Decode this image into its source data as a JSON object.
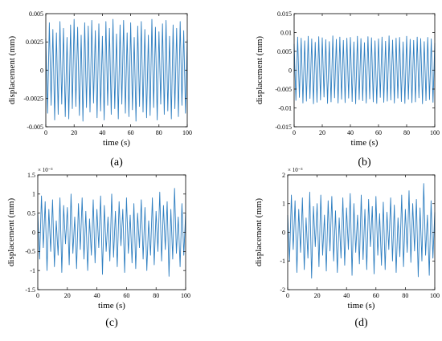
{
  "colors": {
    "line": "#2f7fc1",
    "axis": "#000000",
    "background": "#ffffff"
  },
  "chart_data": [
    {
      "type": "line",
      "panel_label": "(a)",
      "xlabel": "time (s)",
      "ylabel": "displacement (mm)",
      "exponent_label": "",
      "xlim": [
        0,
        100
      ],
      "ylim": [
        -0.005,
        0.005
      ],
      "xticks": [
        0,
        20,
        40,
        60,
        80,
        100
      ],
      "yticks": [
        -0.005,
        -0.0025,
        0,
        0.0025,
        0.005
      ],
      "ytick_labels": [
        "-0.005",
        "-0.0025",
        "0",
        "0.0025",
        "0.005"
      ],
      "series": [
        {
          "x": [
            0,
            1.25,
            2.5,
            3.75,
            5,
            6.25,
            7.5,
            8.75,
            10,
            11.25,
            12.5,
            13.75,
            15,
            16.25,
            17.5,
            18.75,
            20,
            21.25,
            22.5,
            23.75,
            25,
            26.25,
            27.5,
            28.75,
            30,
            31.25,
            32.5,
            33.75,
            35,
            36.25,
            37.5,
            38.75,
            40,
            41.25,
            42.5,
            43.75,
            45,
            46.25,
            47.5,
            48.75,
            50,
            51.25,
            52.5,
            53.75,
            55,
            56.25,
            57.5,
            58.75,
            60,
            61.25,
            62.5,
            63.75,
            65,
            66.25,
            67.5,
            68.75,
            70,
            71.25,
            72.5,
            73.75,
            75,
            76.25,
            77.5,
            78.75,
            80,
            81.25,
            82.5,
            83.75,
            85,
            86.25,
            87.5,
            88.75,
            90,
            91.25,
            92.5,
            93.75,
            95,
            96.25,
            97.5,
            98.75,
            100
          ],
          "y": [
            0.0028,
            -0.0038,
            0.0042,
            -0.0031,
            0.0036,
            -0.0044,
            0.0033,
            -0.0039,
            0.0043,
            -0.003,
            0.0037,
            -0.0041,
            0.0029,
            -0.0043,
            0.004,
            -0.0034,
            0.0045,
            -0.0032,
            0.0038,
            -0.004,
            0.0031,
            -0.0045,
            0.0042,
            -0.0033,
            0.0039,
            -0.0037,
            0.0044,
            -0.0029,
            0.0035,
            -0.0042,
            0.0041,
            -0.0036,
            0.003,
            -0.0044,
            0.0043,
            -0.0031,
            0.0037,
            -0.0039,
            0.0045,
            -0.0034,
            0.0032,
            -0.0043,
            0.004,
            -0.003,
            0.0044,
            -0.0038,
            0.0033,
            -0.0041,
            0.0042,
            -0.0035,
            0.0029,
            -0.0045,
            0.0039,
            -0.0032,
            0.0043,
            -0.0037,
            0.0036,
            -0.0042,
            0.0031,
            -0.004,
            0.0045,
            -0.0033,
            0.0038,
            -0.0044,
            0.0034,
            -0.003,
            0.0041,
            -0.0039,
            0.0044,
            -0.0036,
            0.003,
            -0.0043,
            0.004,
            -0.0034,
            0.0037,
            -0.0041,
            0.0043,
            -0.0031,
            0.0035,
            -0.0038,
            0.0027
          ]
        }
      ]
    },
    {
      "type": "line",
      "panel_label": "(b)",
      "xlabel": "time (s)",
      "ylabel": "displacement (mm)",
      "exponent_label": "",
      "xlim": [
        0,
        100
      ],
      "ylim": [
        -0.015,
        0.015
      ],
      "xticks": [
        0,
        20,
        40,
        60,
        80,
        100
      ],
      "yticks": [
        -0.015,
        -0.01,
        -0.005,
        0,
        0.005,
        0.01,
        0.015
      ],
      "ytick_labels": [
        "-0.015",
        "-0.01",
        "-0.005",
        "0",
        "0.005",
        "0.01",
        "0.015"
      ],
      "series": [
        {
          "x": [
            0,
            1.25,
            2.5,
            3.75,
            5,
            6.25,
            7.5,
            8.75,
            10,
            11.25,
            12.5,
            13.75,
            15,
            16.25,
            17.5,
            18.75,
            20,
            21.25,
            22.5,
            23.75,
            25,
            26.25,
            27.5,
            28.75,
            30,
            31.25,
            32.5,
            33.75,
            35,
            36.25,
            37.5,
            38.75,
            40,
            41.25,
            42.5,
            43.75,
            45,
            46.25,
            47.5,
            48.75,
            50,
            51.25,
            52.5,
            53.75,
            55,
            56.25,
            57.5,
            58.75,
            60,
            61.25,
            62.5,
            63.75,
            65,
            66.25,
            67.5,
            68.75,
            70,
            71.25,
            72.5,
            73.75,
            75,
            76.25,
            77.5,
            78.75,
            80,
            81.25,
            82.5,
            83.75,
            85,
            86.25,
            87.5,
            88.75,
            90,
            91.25,
            92.5,
            93.75,
            95,
            96.25,
            97.5,
            98.75,
            100
          ],
          "y": [
            0.007,
            -0.008,
            0.0088,
            -0.0072,
            0.0085,
            -0.0087,
            0.0078,
            -0.0082,
            0.009,
            -0.0075,
            0.0083,
            -0.0089,
            0.0074,
            -0.0085,
            0.0089,
            -0.0079,
            0.0086,
            -0.0071,
            0.0081,
            -0.0088,
            0.0076,
            -0.0084,
            0.0091,
            -0.0073,
            0.0082,
            -0.0087,
            0.0088,
            -0.0077,
            0.0079,
            -0.0086,
            0.0085,
            -0.0074,
            0.0087,
            -0.0083,
            0.0075,
            -0.0089,
            0.009,
            -0.0078,
            0.0084,
            -0.0081,
            0.0073,
            -0.0087,
            0.0089,
            -0.0076,
            0.0086,
            -0.0084,
            0.0078,
            -0.0088,
            0.0083,
            -0.0072,
            0.0088,
            -0.0085,
            0.0077,
            -0.0082,
            0.0091,
            -0.0079,
            0.008,
            -0.0087,
            0.0085,
            -0.0074,
            0.0087,
            -0.0083,
            0.0075,
            -0.0088,
            0.009,
            -0.0077,
            0.0082,
            -0.0086,
            0.0079,
            -0.0084,
            0.0088,
            -0.0073,
            0.0084,
            -0.0089,
            0.0076,
            -0.0081,
            0.0087,
            -0.0078,
            0.0083,
            -0.0085,
            0.0072
          ]
        }
      ]
    },
    {
      "type": "line",
      "panel_label": "(c)",
      "xlabel": "time (s)",
      "ylabel": "displacement (mm)",
      "exponent_label": "× 10⁻³",
      "xlim": [
        0,
        100
      ],
      "ylim": [
        -1.5,
        1.5
      ],
      "xticks": [
        0,
        20,
        40,
        60,
        80,
        100
      ],
      "yticks": [
        -1.5,
        -1,
        -0.5,
        0,
        0.5,
        1,
        1.5
      ],
      "ytick_labels": [
        "-1.5",
        "-1",
        "-0.5",
        "0",
        "0.5",
        "1",
        "1.5"
      ],
      "series": [
        {
          "x": [
            0,
            1.25,
            2.5,
            3.75,
            5,
            6.25,
            7.5,
            8.75,
            10,
            11.25,
            12.5,
            13.75,
            15,
            16.25,
            17.5,
            18.75,
            20,
            21.25,
            22.5,
            23.75,
            25,
            26.25,
            27.5,
            28.75,
            30,
            31.25,
            32.5,
            33.75,
            35,
            36.25,
            37.5,
            38.75,
            40,
            41.25,
            42.5,
            43.75,
            45,
            46.25,
            47.5,
            48.75,
            50,
            51.25,
            52.5,
            53.75,
            55,
            56.25,
            57.5,
            58.75,
            60,
            61.25,
            62.5,
            63.75,
            65,
            66.25,
            67.5,
            68.75,
            70,
            71.25,
            72.5,
            73.75,
            75,
            76.25,
            77.5,
            78.75,
            80,
            81.25,
            82.5,
            83.75,
            85,
            86.25,
            87.5,
            88.75,
            90,
            91.25,
            92.5,
            93.75,
            95,
            96.25,
            97.5,
            98.75,
            100
          ],
          "y": [
            0.5,
            -0.7,
            0.95,
            -0.4,
            0.8,
            -1.0,
            0.6,
            -0.5,
            0.85,
            -0.9,
            0.3,
            -0.6,
            0.9,
            -1.05,
            0.7,
            -0.3,
            0.65,
            -0.85,
            1.0,
            -0.55,
            0.4,
            -0.95,
            0.75,
            -0.45,
            0.9,
            -0.7,
            0.55,
            -1.0,
            0.35,
            -0.6,
            0.85,
            -0.8,
            0.6,
            -0.4,
            0.95,
            -1.1,
            0.7,
            -0.5,
            0.4,
            -0.75,
            1.0,
            -0.65,
            0.55,
            -0.9,
            0.8,
            -0.35,
            0.6,
            -1.05,
            0.9,
            -0.55,
            0.45,
            -0.8,
            0.75,
            -0.95,
            0.5,
            -0.4,
            0.85,
            -0.7,
            0.65,
            -1.0,
            0.3,
            -0.6,
            0.9,
            -0.85,
            0.55,
            -0.5,
            1.05,
            -0.75,
            0.7,
            -0.45,
            0.8,
            -1.15,
            0.6,
            -0.7,
            1.15,
            -0.55,
            0.4,
            -0.9,
            0.75,
            -0.6,
            0.5
          ]
        }
      ]
    },
    {
      "type": "line",
      "panel_label": "(d)",
      "xlabel": "time (s)",
      "ylabel": "displacement (mm)",
      "exponent_label": "× 10⁻³",
      "xlim": [
        0,
        100
      ],
      "ylim": [
        -2,
        2
      ],
      "xticks": [
        0,
        20,
        40,
        60,
        80,
        100
      ],
      "yticks": [
        -2,
        -1,
        0,
        1,
        2
      ],
      "ytick_labels": [
        "-2",
        "-1",
        "0",
        "1",
        "2"
      ],
      "series": [
        {
          "x": [
            0,
            1.25,
            2.5,
            3.75,
            5,
            6.25,
            7.5,
            8.75,
            10,
            11.25,
            12.5,
            13.75,
            15,
            16.25,
            17.5,
            18.75,
            20,
            21.25,
            22.5,
            23.75,
            25,
            26.25,
            27.5,
            28.75,
            30,
            31.25,
            32.5,
            33.75,
            35,
            36.25,
            37.5,
            38.75,
            40,
            41.25,
            42.5,
            43.75,
            45,
            46.25,
            47.5,
            48.75,
            50,
            51.25,
            52.5,
            53.75,
            55,
            56.25,
            57.5,
            58.75,
            60,
            61.25,
            62.5,
            63.75,
            65,
            66.25,
            67.5,
            68.75,
            70,
            71.25,
            72.5,
            73.75,
            75,
            76.25,
            77.5,
            78.75,
            80,
            81.25,
            82.5,
            83.75,
            85,
            86.25,
            87.5,
            88.75,
            90,
            91.25,
            92.5,
            93.75,
            95,
            96.25,
            97.5,
            98.75,
            100
          ],
          "y": [
            0.6,
            -1.0,
            1.3,
            -0.6,
            1.1,
            -1.4,
            0.8,
            -0.7,
            1.2,
            -1.3,
            0.5,
            -0.9,
            1.4,
            -1.6,
            0.9,
            -0.5,
            1.0,
            -1.2,
            1.3,
            -0.8,
            0.6,
            -1.35,
            1.1,
            -0.65,
            1.25,
            -1.0,
            0.75,
            -1.4,
            0.5,
            -0.9,
            1.2,
            -1.15,
            0.85,
            -0.6,
            1.35,
            -1.5,
            1.0,
            -0.7,
            0.6,
            -1.1,
            1.3,
            -0.95,
            0.8,
            -1.3,
            1.15,
            -0.5,
            0.9,
            -1.45,
            1.25,
            -0.8,
            0.65,
            -1.15,
            1.05,
            -1.3,
            0.7,
            -0.6,
            1.2,
            -1.0,
            0.95,
            -1.4,
            0.5,
            -0.85,
            1.3,
            -1.2,
            0.8,
            -0.7,
            1.45,
            -1.05,
            1.0,
            -0.65,
            1.15,
            -1.55,
            0.85,
            -1.0,
            1.7,
            -0.8,
            0.6,
            -1.5,
            1.1,
            -0.9,
            0.7
          ]
        }
      ]
    }
  ]
}
